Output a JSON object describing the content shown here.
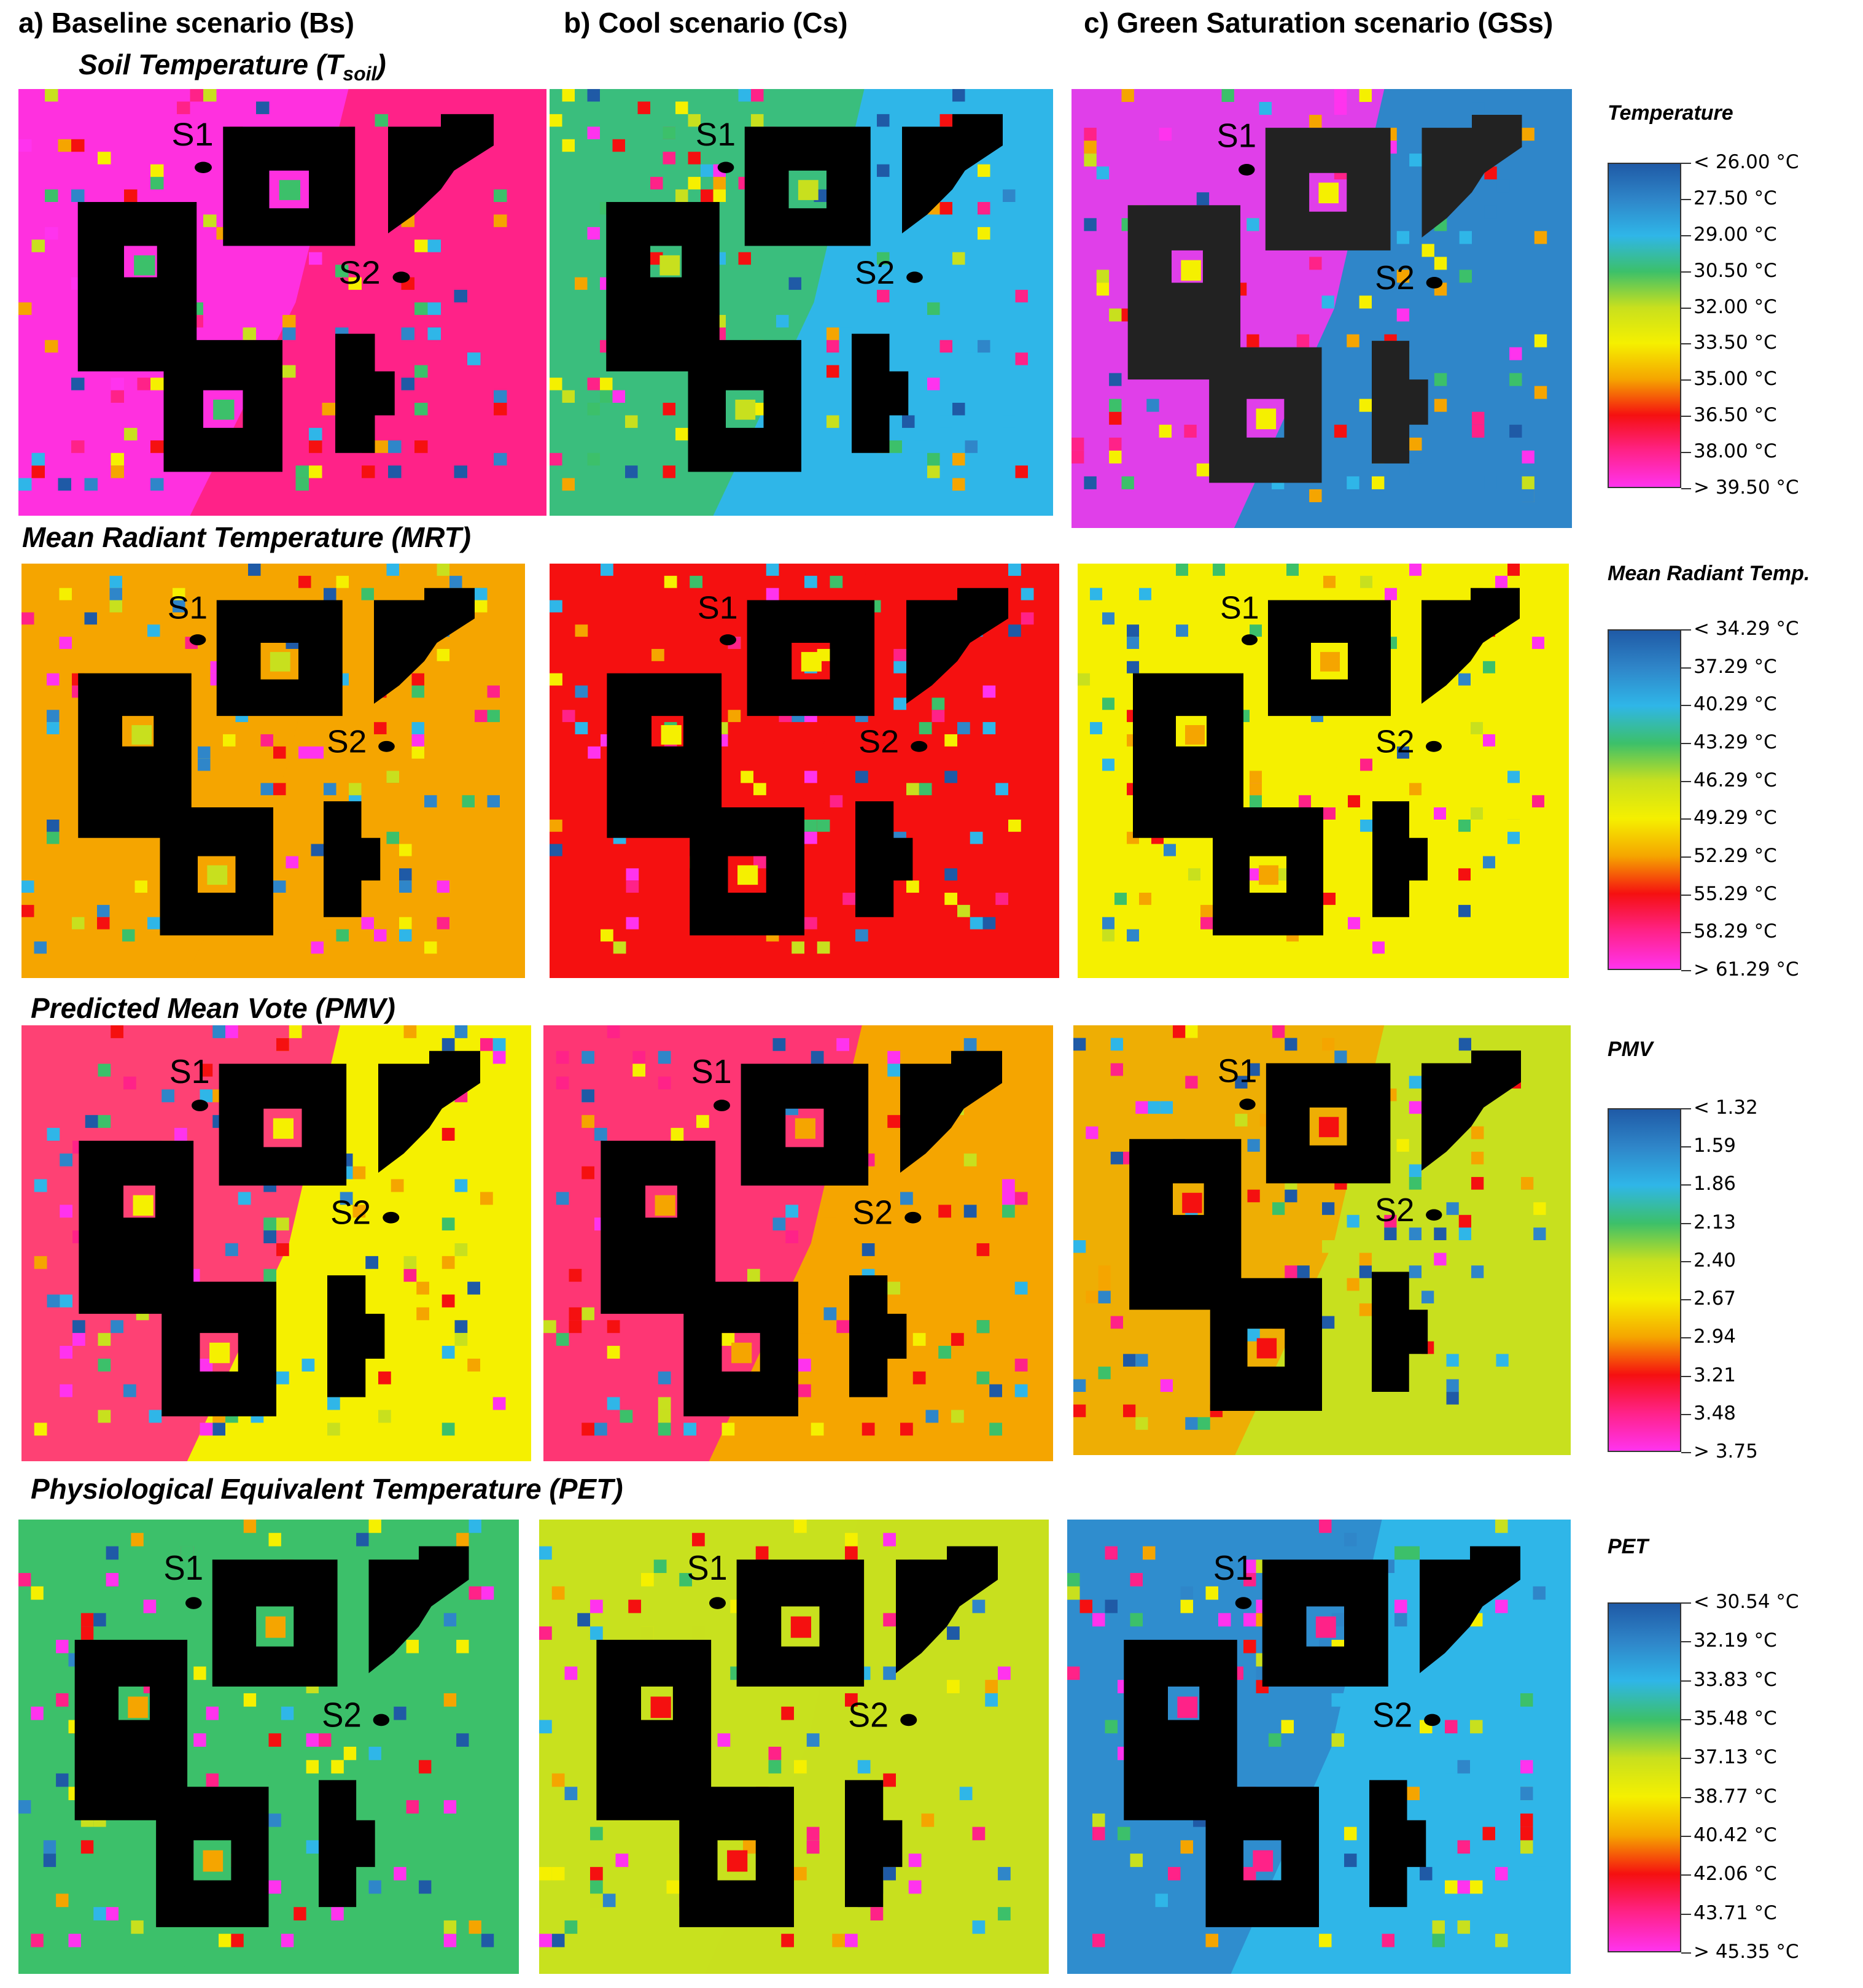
{
  "columns": [
    {
      "label": "a) Baseline scenario (Bs)"
    },
    {
      "label": "b) Cool scenario (Cs)"
    },
    {
      "label": "c) Green Saturation scenario (GSs)"
    }
  ],
  "rows": [
    {
      "title_main": "Soil Temperature (T",
      "title_sub": "soil",
      "title_end": ")",
      "legend": {
        "title": "Temperature",
        "ticks": [
          "< 26.00 °C",
          "27.50 °C",
          "29.00 °C",
          "30.50 °C",
          "32.00 °C",
          "33.50 °C",
          "35.00 °C",
          "36.50 °C",
          "38.00 °C",
          "> 39.50 °C"
        ]
      }
    },
    {
      "title_main": "Mean Radiant Temperature (MRT)",
      "title_sub": "",
      "title_end": "",
      "legend": {
        "title": "Mean Radiant Temp.",
        "ticks": [
          "< 34.29 °C",
          "37.29  °C",
          "40.29  °C",
          "43.29  °C",
          "46.29  °C",
          "49.29  °C",
          "52.29  °C",
          "55.29  °C",
          "58.29  °C",
          "> 61.29 °C"
        ]
      }
    },
    {
      "title_main": "Predicted Mean Vote (PMV)",
      "title_sub": "",
      "title_end": "",
      "legend": {
        "title": "PMV",
        "ticks": [
          "< 1.32",
          "1.59",
          "1.86",
          "2.13",
          "2.40",
          "2.67",
          "2.94",
          "3.21",
          "3.48",
          "> 3.75"
        ]
      }
    },
    {
      "title_main": "Physiological Equivalent Temperature (PET)",
      "title_sub": "",
      "title_end": "",
      "legend": {
        "title": "PET",
        "ticks": [
          "< 30.54 °C",
          "32.19  °C",
          "33.83  °C",
          "35.48  °C",
          "37.13  °C",
          "38.77  °C",
          "40.42  °C",
          "42.06  °C",
          "43.71  °C",
          "> 45.35 °C"
        ]
      }
    }
  ],
  "markers": {
    "s1": "S1",
    "s2": "S2"
  },
  "colormap": [
    "#1f5aa6",
    "#2f86c9",
    "#2fb6e8",
    "#3cc06a",
    "#c8e01e",
    "#f5f000",
    "#f5a500",
    "#f51010",
    "#ff2288",
    "#ff33ee"
  ],
  "panel_fills": [
    [
      "#ff33ee",
      "#3cc06a",
      "#ff33ee"
    ],
    [
      "#f5a500",
      "#f51010",
      "#f5f000"
    ],
    [
      "#ff2288",
      "#ff2288",
      "#f5a500"
    ],
    [
      "#3cc06a",
      "#c8e01e",
      "#2f86c9"
    ]
  ],
  "panel_bg": [
    [
      "#ff2288",
      "#2fb6e8",
      "#2f86c9"
    ],
    [
      "#f5a500",
      "#f51010",
      "#f5f000"
    ],
    [
      "#f5f000",
      "#f5a500",
      "#c8e01e"
    ],
    [
      "#3cc06a",
      "#c8e01e",
      "#2fb6e8"
    ]
  ]
}
